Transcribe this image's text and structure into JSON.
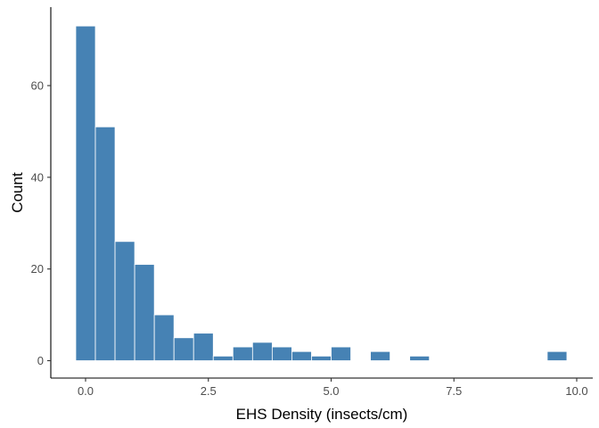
{
  "chart_data": {
    "type": "bar",
    "subtype": "histogram",
    "title": "",
    "xlabel": "EHS Density (insects/cm)",
    "ylabel": "Count",
    "bin_width": 0.4,
    "bin_centers": [
      0.0,
      0.4,
      0.8,
      1.2,
      1.6,
      2.0,
      2.4,
      2.8,
      3.2,
      3.6,
      4.0,
      4.4,
      4.8,
      5.2,
      5.6,
      6.0,
      6.4,
      6.8,
      7.2,
      7.6,
      8.0,
      8.4,
      8.8,
      9.2,
      9.6
    ],
    "values": [
      73,
      51,
      26,
      21,
      10,
      5,
      6,
      1,
      3,
      4,
      3,
      2,
      1,
      3,
      0,
      2,
      0,
      1,
      0,
      0,
      0,
      0,
      0,
      0,
      2
    ],
    "xlim": [
      -0.4,
      10.0
    ],
    "ylim": [
      0,
      73
    ],
    "x_ticks": [
      0.0,
      2.5,
      5.0,
      7.5,
      10.0
    ],
    "x_tick_labels": [
      "0.0",
      "2.5",
      "5.0",
      "7.5",
      "10.0"
    ],
    "y_ticks": [
      0,
      20,
      40,
      60
    ],
    "y_tick_labels": [
      "0",
      "20",
      "40",
      "60"
    ],
    "bar_fill": "#4682b4",
    "bar_outline": "#ffffff",
    "axis_color": "#000000",
    "grid": false
  }
}
